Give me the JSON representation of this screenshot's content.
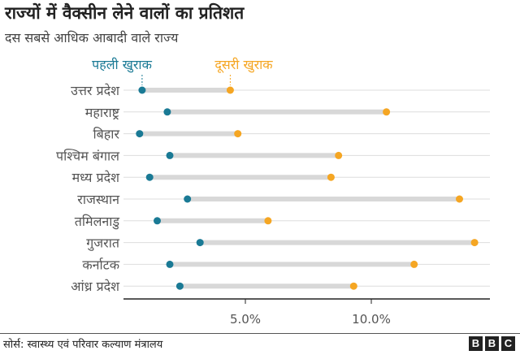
{
  "title": "राज्यों में वैक्सीन लेने वालों का प्रतिशत",
  "subtitle": "दस सबसे आधिक आबादी वाले राज्य",
  "source": "सोर्स: स्वास्थ्य एवं परिवार कल्याण मंत्रालय",
  "logo": "BBC",
  "chart_data": {
    "type": "dumbbell",
    "categories": [
      "उत्तर प्रदेश",
      "महाराष्ट्र",
      "बिहार",
      "पश्चिम बंगाल",
      "मध्य प्रदेश",
      "राजस्थान",
      "तमिलनाडु",
      "गुजरात",
      "कर्नाटक",
      "आंध्र प्रदेश"
    ],
    "series": [
      {
        "name": "पहली खुराक",
        "color": "#1a7a95",
        "values": [
          0.9,
          1.9,
          0.8,
          2.0,
          1.2,
          2.7,
          1.5,
          3.2,
          2.0,
          2.4
        ]
      },
      {
        "name": "दूसरी खुराक",
        "color": "#f5a623",
        "values": [
          4.4,
          10.6,
          4.7,
          8.7,
          8.4,
          13.5,
          5.9,
          14.1,
          11.7,
          9.3
        ]
      }
    ],
    "xticks": [
      5,
      10
    ],
    "xtick_labels": [
      "5.0%",
      "10.0%"
    ],
    "xlim": [
      0.2,
      14.7
    ],
    "grid": true,
    "legend_placement": "top"
  }
}
